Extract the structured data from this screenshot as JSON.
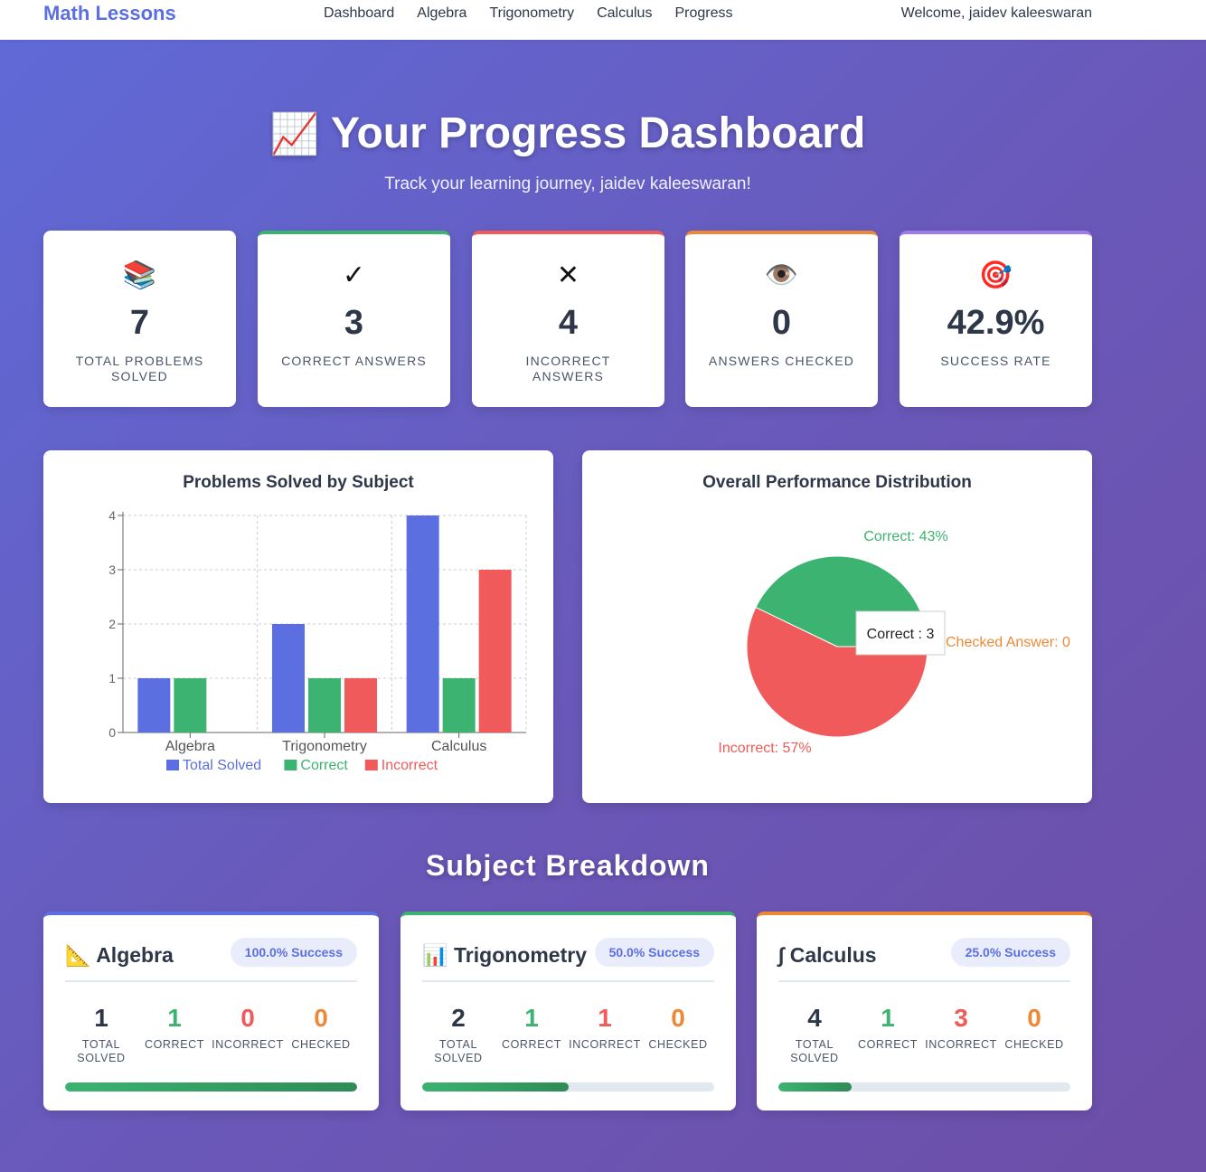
{
  "nav": {
    "brand": "Math Lessons",
    "links": [
      "Dashboard",
      "Algebra",
      "Trigonometry",
      "Calculus",
      "Progress"
    ],
    "welcome": "Welcome, jaidev kaleeswaran"
  },
  "hero": {
    "emoji": "📈",
    "title": "Your Progress Dashboard",
    "subtitle": "Track your learning journey, jaidev kaleeswaran!"
  },
  "stats": [
    {
      "icon": "📚",
      "icon_name": "books-icon",
      "value": "7",
      "label": "Total Problems Solved",
      "accent": ""
    },
    {
      "icon": "✓",
      "icon_name": "check-icon",
      "value": "3",
      "label": "Correct Answers",
      "accent": "#3cb371"
    },
    {
      "icon": "✕",
      "icon_name": "cross-icon",
      "value": "4",
      "label": "Incorrect Answers",
      "accent": "#f05a5a"
    },
    {
      "icon": "👁️",
      "icon_name": "eye-icon",
      "value": "0",
      "label": "Answers Checked",
      "accent": "#ed8936"
    },
    {
      "icon": "🎯",
      "icon_name": "target-icon",
      "value": "42.9%",
      "label": "Success Rate",
      "accent": "#9f7aea"
    }
  ],
  "charts": {
    "bar_title": "Problems Solved by Subject",
    "pie_title": "Overall Performance Distribution"
  },
  "chart_data": [
    {
      "type": "bar",
      "title": "Problems Solved by Subject",
      "categories": [
        "Algebra",
        "Trigonometry",
        "Calculus"
      ],
      "series": [
        {
          "name": "Total Solved",
          "values": [
            1,
            2,
            4
          ],
          "color": "#5b6fe0"
        },
        {
          "name": "Correct",
          "values": [
            1,
            1,
            1
          ],
          "color": "#3cb371"
        },
        {
          "name": "Incorrect",
          "values": [
            0,
            1,
            3
          ],
          "color": "#f05a5a"
        }
      ],
      "ylim": [
        0,
        4
      ],
      "yticks": [
        0,
        1,
        2,
        3,
        4
      ],
      "grid": true,
      "legend": "bottom"
    },
    {
      "type": "pie",
      "title": "Overall Performance Distribution",
      "slices": [
        {
          "name": "Correct",
          "value": 3,
          "label": "Correct: 43%",
          "color": "#3cb371"
        },
        {
          "name": "Incorrect",
          "value": 4,
          "label": "Incorrect: 57%",
          "color": "#f05a5a"
        },
        {
          "name": "Checked Answer",
          "value": 0,
          "label": "Checked Answer: 0",
          "color": "#ed8936"
        }
      ],
      "tooltip": "Correct : 3"
    }
  ],
  "breakdown": {
    "title": "Subject Breakdown",
    "labels": {
      "total": "Total Solved",
      "correct": "Correct",
      "incorrect": "Incorrect",
      "checked": "Checked"
    },
    "subjects": [
      {
        "icon": "📐",
        "icon_name": "triangle-ruler-icon",
        "name": "Algebra",
        "badge": "100.0% Success",
        "total": "1",
        "correct": "1",
        "incorrect": "0",
        "checked": "0",
        "progress": 1.0,
        "accent": "#5b6fe0"
      },
      {
        "icon": "📊",
        "icon_name": "bar-chart-icon",
        "name": "Trigonometry",
        "badge": "50.0% Success",
        "total": "2",
        "correct": "1",
        "incorrect": "1",
        "checked": "0",
        "progress": 0.5,
        "accent": "#3cb371"
      },
      {
        "icon": "∫",
        "icon_name": "integral-icon",
        "name": "Calculus",
        "badge": "25.0% Success",
        "total": "4",
        "correct": "1",
        "incorrect": "3",
        "checked": "0",
        "progress": 0.25,
        "accent": "#ed8936"
      }
    ]
  },
  "colors": {
    "correct": "#3cb371",
    "incorrect": "#f05a5a",
    "checked": "#ed8936",
    "total": "#2d3748"
  }
}
